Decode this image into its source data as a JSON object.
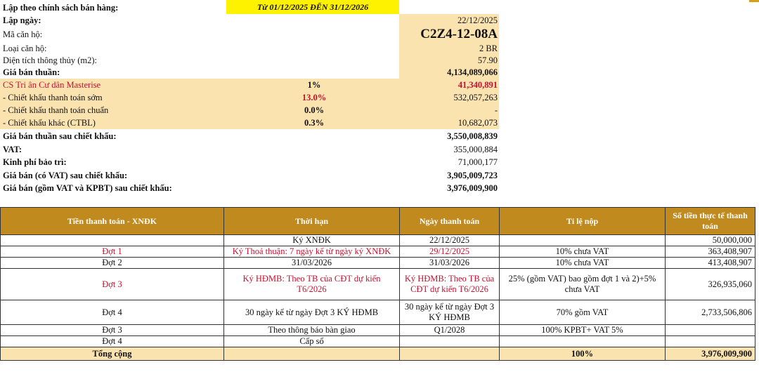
{
  "summary": {
    "policy_label": "Lập theo chính sách bán hàng:",
    "policy_period": "Từ 01/12/2025 ĐẾN 31/12/2026",
    "date_label": "Lập ngày:",
    "date_value": "22/12/2025",
    "unit_code_label": "Mã căn hộ:",
    "unit_code": "C2Z4-12-08A",
    "unit_type_label": "Loại căn hộ:",
    "unit_type": "2 BR",
    "area_label": "Diện tích thông thủy (m2):",
    "area": "57.90",
    "net_price_label": "Giá bán thuần:",
    "net_price": "4,134,089,066",
    "resident_label": "CS Tri ân Cư dân Masterise",
    "resident_pct": "1%",
    "resident_value": "41,340,891",
    "early_label": "- Chiết khấu thanh toán sớm",
    "early_pct": "13.0%",
    "early_value": "532,057,263",
    "standard_label": "- Chiết khấu thanh toán chuẩn",
    "standard_pct": "0.0%",
    "standard_value": "-",
    "other_label": "- Chiết khấu khác (CTBL)",
    "other_pct": "0.3%",
    "other_value": "10,682,073",
    "after_discount_label": "Giá bán thuần sau chiết khấu:",
    "after_discount": "3,550,008,839",
    "vat_label": "VAT:",
    "vat": "355,000,884",
    "maintenance_label": "Kinh phí bảo trì:",
    "maintenance": "71,000,177",
    "with_vat_label": "Giá bán (có VAT) sau chiết khấu:",
    "with_vat": "3,905,009,723",
    "with_vat_kpbt_label": "Giá bán (gồm VAT và KPBT) sau chiết khấu:",
    "with_vat_kpbt": "3,976,009,900"
  },
  "schedule": {
    "headers": [
      "Tiền thanh toán - XNĐK",
      "Thời hạn",
      "Ngày thanh toán",
      "Tỉ lệ nộp",
      "Số tiền thực tế thanh toán"
    ],
    "rows": [
      {
        "phase": "",
        "term": "Ký XNĐK",
        "date": "22/12/2025",
        "rate": "",
        "amount": "50,000,000"
      },
      {
        "phase": "Đợt 1",
        "term": "Ký Thoả thuận: 7 ngày kể từ ngày ký XNĐK",
        "date": "29/12/2025",
        "rate": "10% chưa VAT",
        "amount": "363,408,907"
      },
      {
        "phase": "Đợt 2",
        "term": "31/03/2026",
        "date": "31/03/2026",
        "rate": "10% chưa VAT",
        "amount": "413,408,907"
      },
      {
        "phase": "Đợt 3",
        "term": "Ký HĐMB: Theo TB của CĐT dự kiến T6/2026",
        "date": "Ký HĐMB: Theo TB của CĐT dự kiến T6/2026",
        "rate": "25% (gồm VAT) bao gồm đợt 1 và 2)+5% chưa VAT",
        "amount": "326,935,060"
      },
      {
        "phase": "Đợt 4",
        "term": "30 ngày kể từ ngày Đợt 3 KÝ HĐMB",
        "date": "30 ngày kể từ ngày Đợt 3 KÝ HĐMB",
        "rate": "70% gồm VAT",
        "amount": "2,733,506,806"
      },
      {
        "phase": "Đợt 3",
        "term": "Theo thông báo bàn giao",
        "date": "Q1/2028",
        "rate": "100% KPBT+ VAT 5%",
        "amount": ""
      },
      {
        "phase": "Đợt 4",
        "term": "Cấp sổ",
        "date": "",
        "rate": "",
        "amount": ""
      }
    ],
    "total_label": "Tổng cộng",
    "total_rate": "100%",
    "total_amount": "3,976,009,900"
  }
}
